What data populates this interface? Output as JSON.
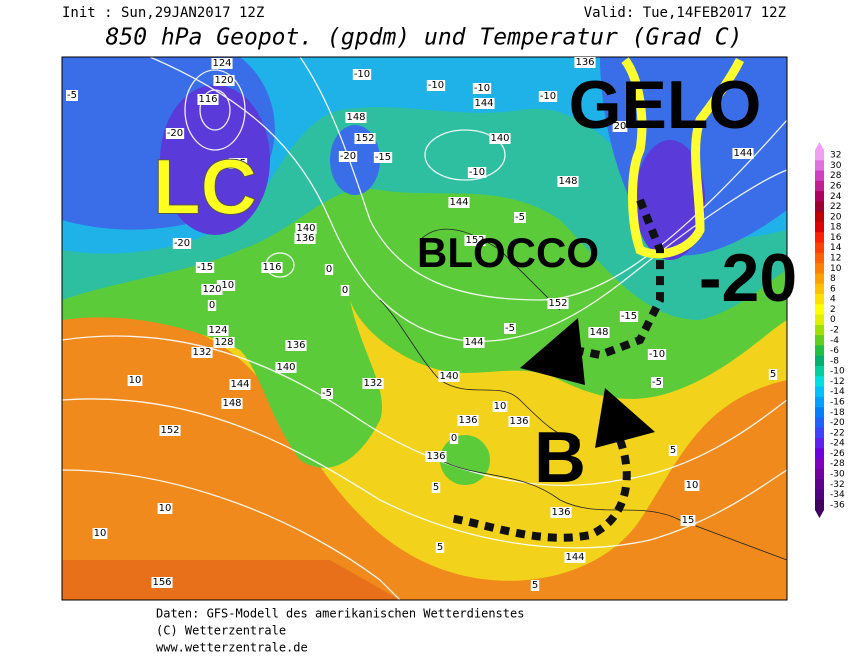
{
  "header": {
    "init": "Init : Sun,29JAN2017 12Z",
    "valid": "Valid: Tue,14FEB2017 12Z",
    "title": "850 hPa Geopot. (gpdm) und Temperatur (Grad C)"
  },
  "annotations": {
    "lc": "LC",
    "gelo": "GELO",
    "blocco": "BLOCCO",
    "minus20": "-20",
    "b": "B"
  },
  "legend": {
    "values": [
      32,
      30,
      28,
      26,
      24,
      22,
      20,
      18,
      16,
      14,
      12,
      10,
      8,
      6,
      4,
      2,
      0,
      -2,
      -4,
      -6,
      -8,
      -10,
      -12,
      -14,
      -16,
      -18,
      -20,
      -22,
      -24,
      -26,
      -28,
      -30,
      -32,
      -34,
      -36
    ],
    "colors": [
      "#f0a0f0",
      "#e070e0",
      "#d040c0",
      "#c02090",
      "#b00060",
      "#a00030",
      "#c00000",
      "#e00000",
      "#ff2000",
      "#ff4000",
      "#ff6000",
      "#ff8000",
      "#ffa000",
      "#ffc000",
      "#ffe000",
      "#ffff00",
      "#e0f000",
      "#a0e000",
      "#60d020",
      "#20c040",
      "#00b070",
      "#00d0a0",
      "#00e0e0",
      "#00c0ff",
      "#00a0ff",
      "#0080ff",
      "#2060ff",
      "#4040ff",
      "#6020f0",
      "#7000e0",
      "#8000c0",
      "#7000a0",
      "#600090",
      "#500080",
      "#400060"
    ]
  },
  "contour_labels": [
    "124",
    "120",
    "116",
    "-20",
    "-25",
    "-20",
    "-15",
    "-10",
    "120",
    "0",
    "124",
    "128",
    "132",
    "10",
    "144",
    "148",
    "152",
    "10",
    "10",
    "156",
    "-5",
    "-10",
    "-10",
    "-10",
    "-10",
    "144",
    "148",
    "152",
    "-20",
    "-15",
    "140",
    "-10",
    "144",
    "148",
    "-5",
    "152",
    "140",
    "136",
    "116",
    "0",
    "0",
    "136",
    "140",
    "-5",
    "132",
    "140",
    "144",
    "-5",
    "152",
    "148",
    "-15",
    "-10",
    "-5",
    "136",
    "20",
    "144",
    "5",
    "136",
    "136",
    "0",
    "136",
    "5",
    "10",
    "15",
    "136",
    "144",
    "5",
    "5",
    "5",
    "10"
  ],
  "footer": {
    "source": "Daten: GFS-Modell des amerikanischen Wetterdienstes",
    "copyright": "(C) Wetterzentrale",
    "url": "www.wetterzentrale.de"
  }
}
